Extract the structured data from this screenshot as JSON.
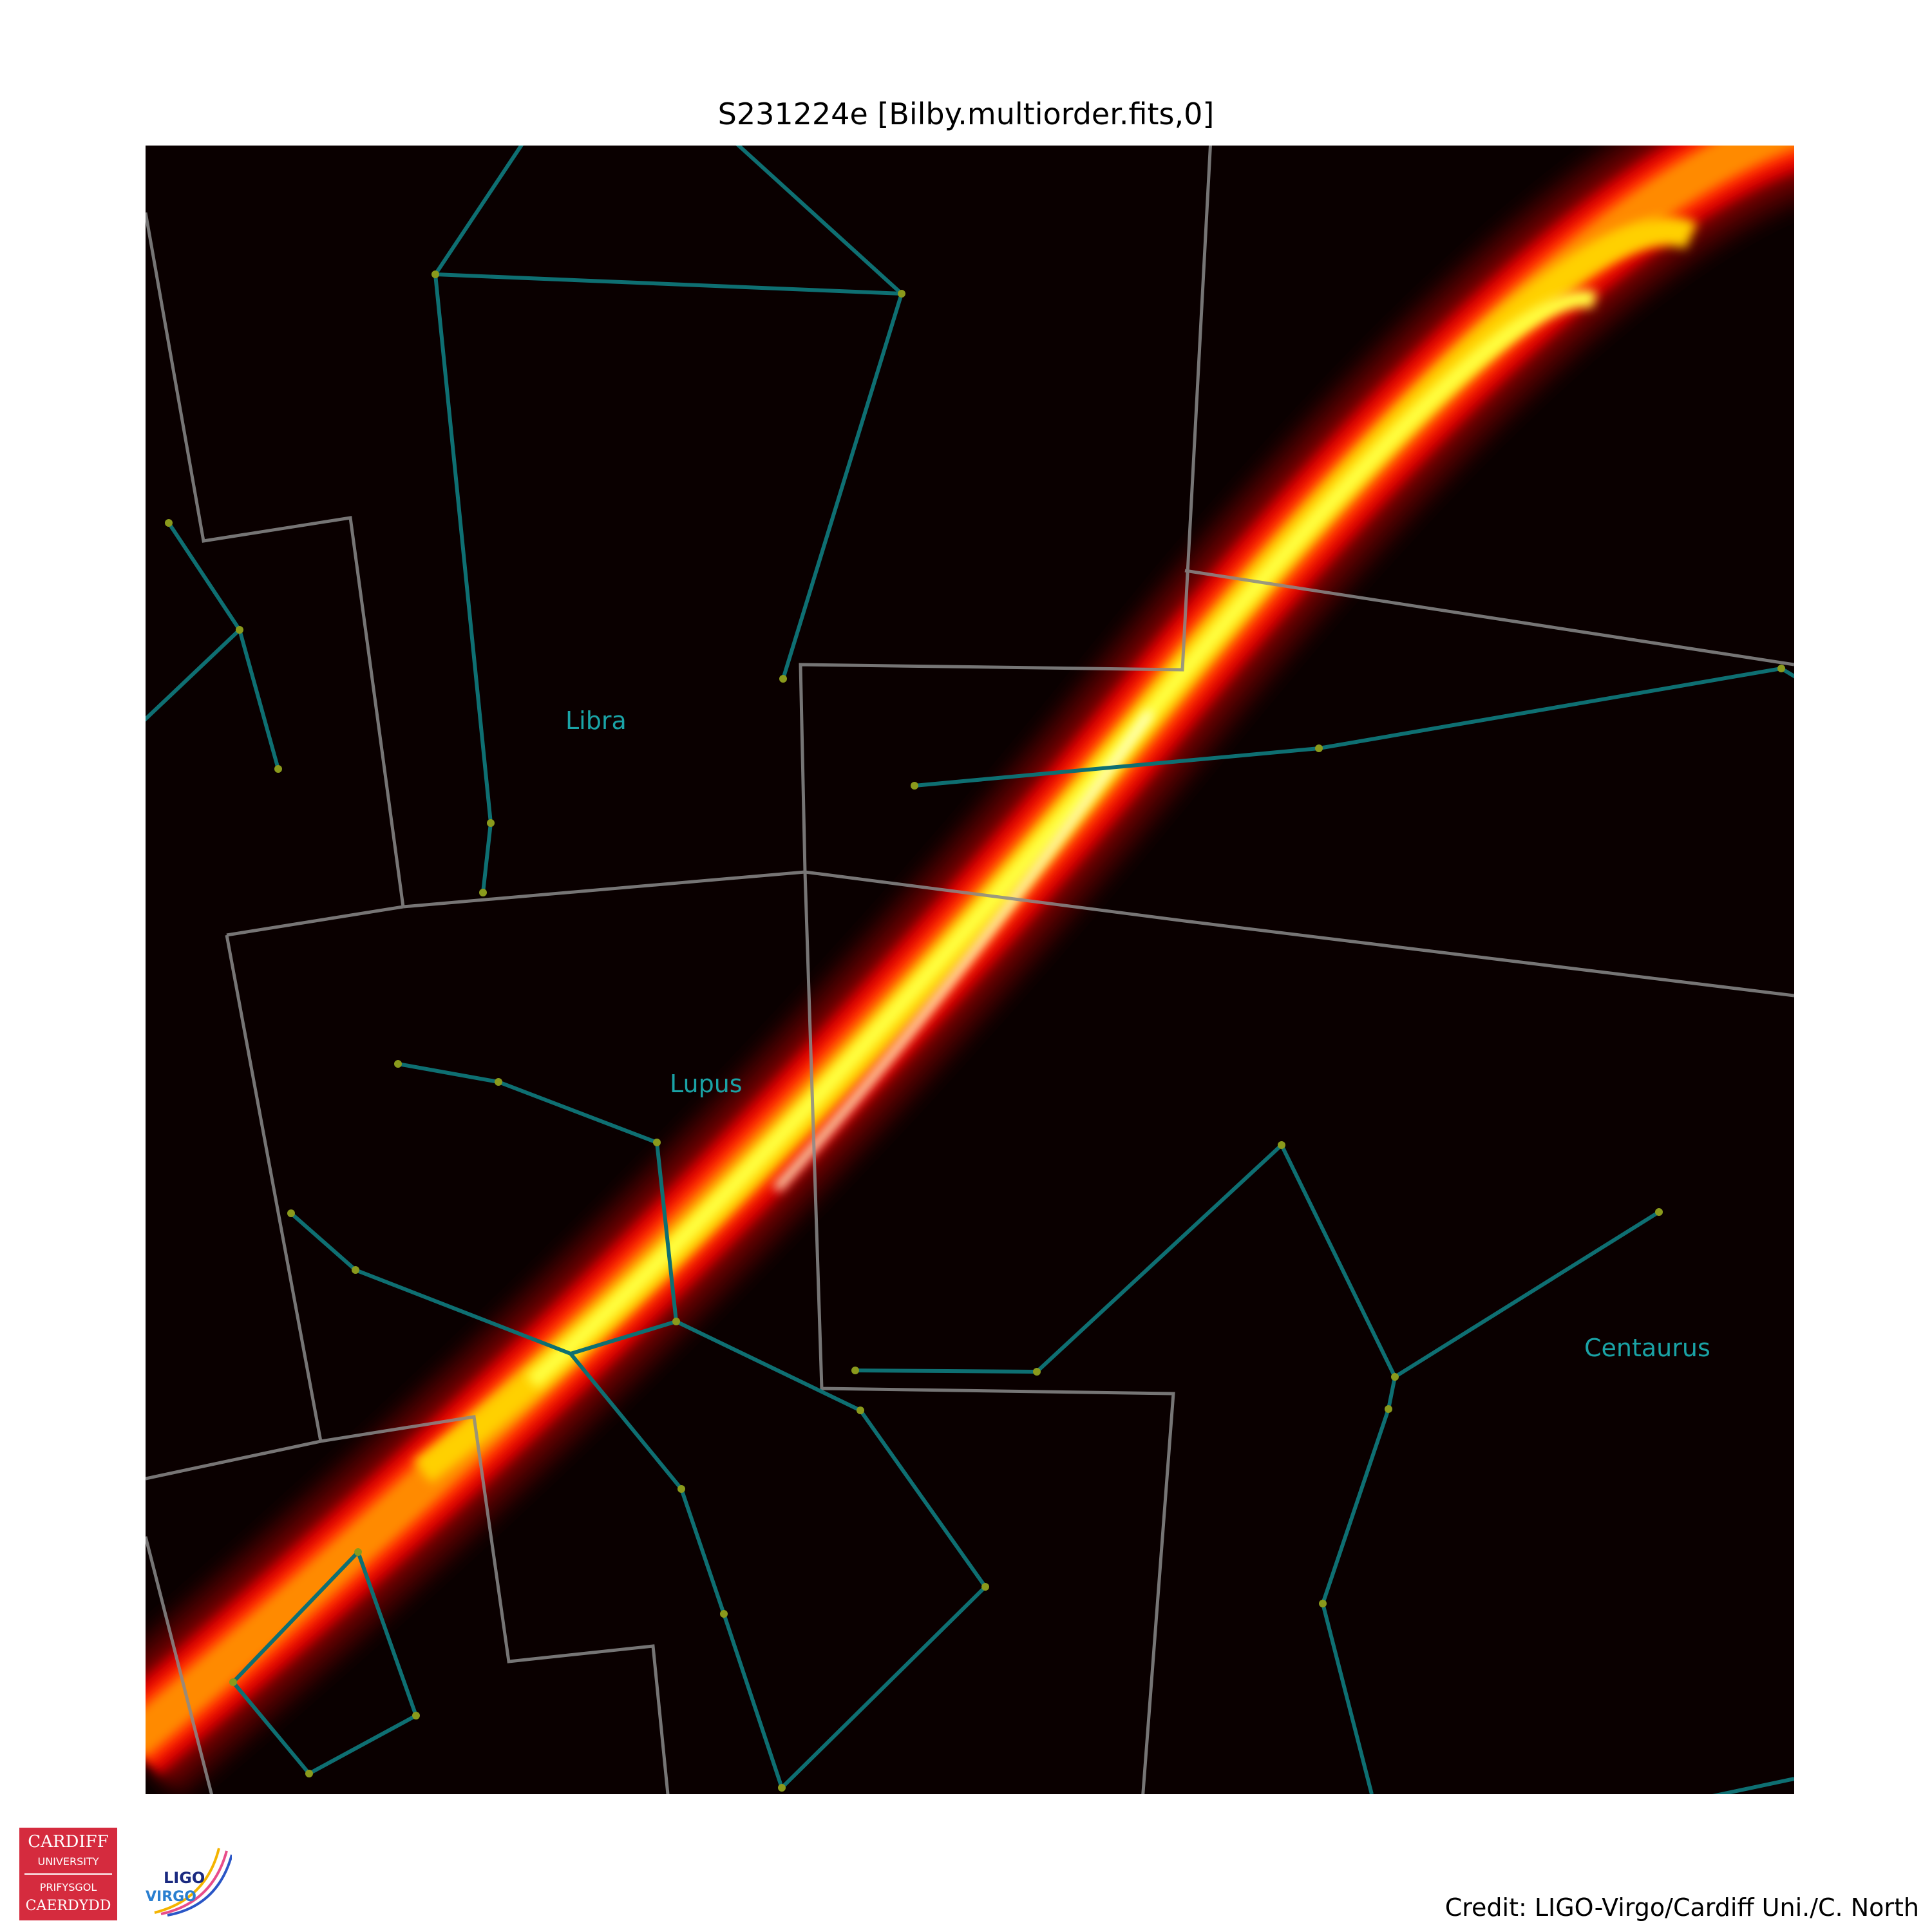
{
  "title": "S231224e [Bilby.multiorder.fits,0]",
  "credit": "Credit: LIGO-Virgo/Cardiff Uni./C. North",
  "logos": {
    "cardiff": {
      "line1": "CARDIFF",
      "line2": "UNIVERSITY",
      "line3": "PRIFYSGOL",
      "line4": "CAERDYDD"
    },
    "ligo": {
      "line1": "LIGO",
      "line2": "VIRGO"
    }
  },
  "constellations": [
    {
      "name": "Libra"
    },
    {
      "name": "Lupus"
    },
    {
      "name": "Centaurus"
    }
  ],
  "colors": {
    "background": "#0a0000",
    "boundary": "#8a8a8a",
    "figure_line": "#0e6f72",
    "star": "#8a9a1c",
    "label": "#1aa3a6",
    "cardiff_red": "#d52b3e"
  }
}
